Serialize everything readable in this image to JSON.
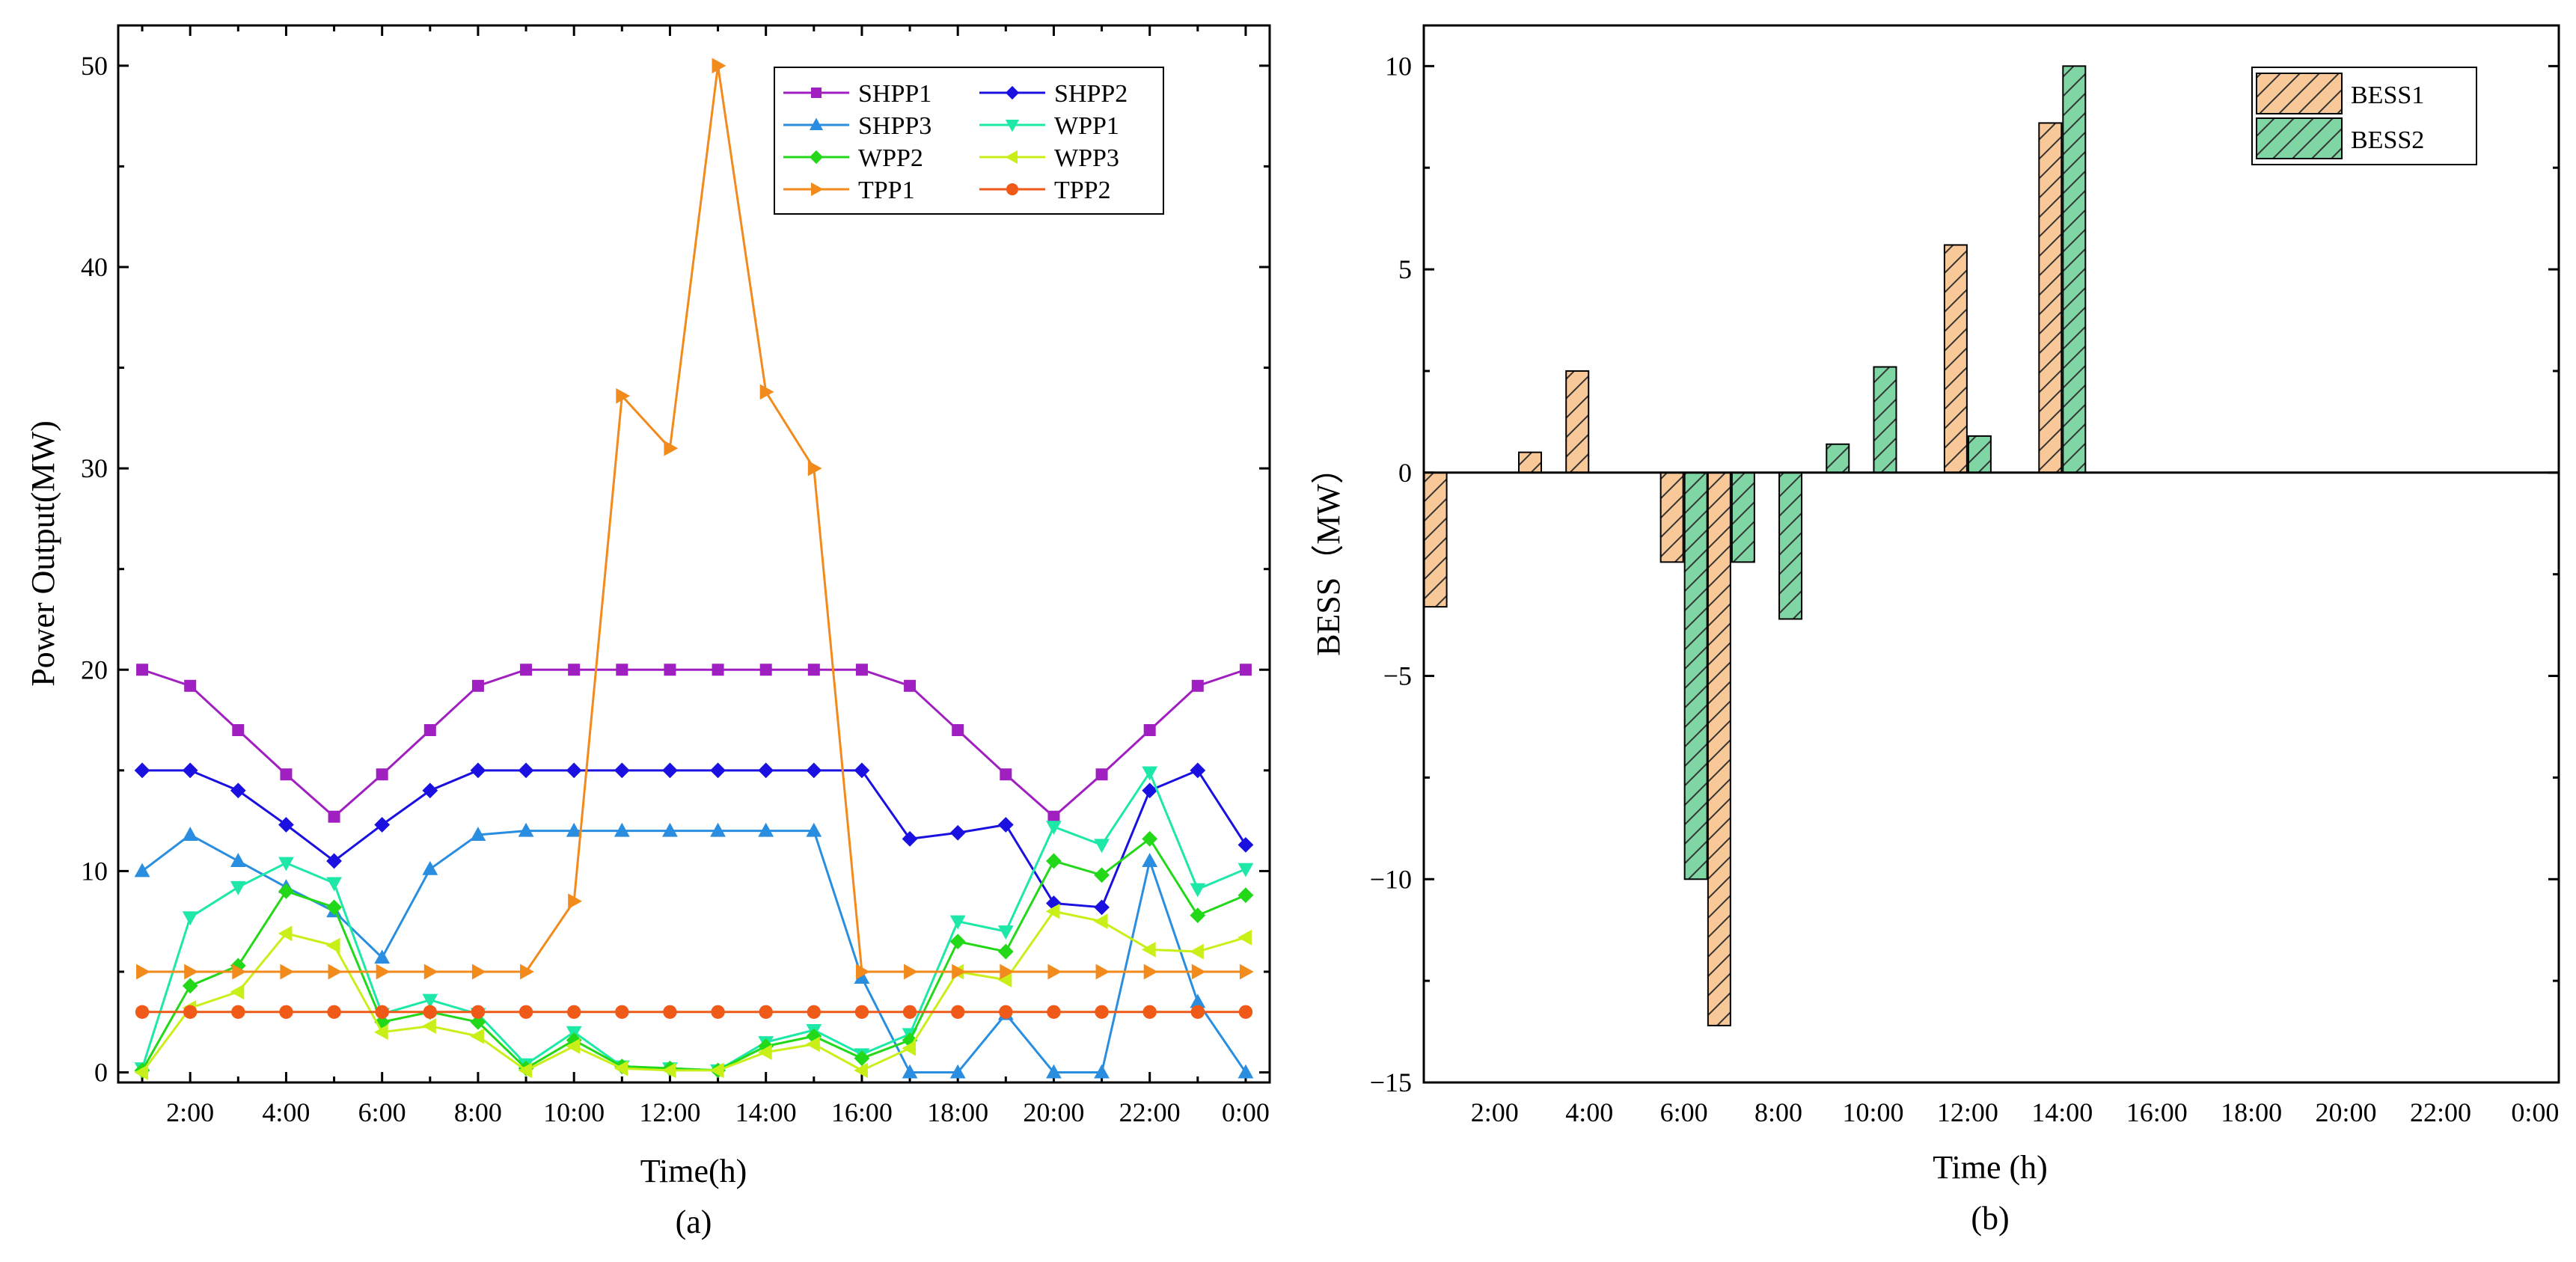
{
  "chart_data": [
    {
      "type": "line",
      "panel_label": "(a)",
      "title": "",
      "xlabel": "Time(h)",
      "ylabel": "Power Output(MW)",
      "x": [
        1,
        2,
        3,
        4,
        5,
        6,
        7,
        8,
        9,
        10,
        11,
        12,
        13,
        14,
        15,
        16,
        17,
        18,
        19,
        20,
        21,
        22,
        23,
        24
      ],
      "x_tick_labels": [
        "2:00",
        "4:00",
        "6:00",
        "8:00",
        "10:00",
        "12:00",
        "14:00",
        "16:00",
        "18:00",
        "20:00",
        "22:00",
        "0:00"
      ],
      "y_ticks": [
        0,
        10,
        20,
        30,
        40,
        50
      ],
      "xlim": [
        0.5,
        24.5
      ],
      "ylim": [
        -0.5,
        52
      ],
      "legend_position": "top-right",
      "series": [
        {
          "name": "SHPP1",
          "color": "#a01fc0",
          "marker": "square",
          "values": [
            20,
            19.2,
            17,
            14.8,
            12.7,
            14.8,
            17,
            19.2,
            20,
            20,
            20,
            20,
            20,
            20,
            20,
            20,
            19.2,
            17,
            14.8,
            12.7,
            14.8,
            17,
            19.2,
            20
          ]
        },
        {
          "name": "SHPP2",
          "color": "#1a10e0",
          "marker": "diamond",
          "values": [
            15,
            15,
            14,
            12.3,
            10.5,
            12.3,
            14,
            15,
            15,
            15,
            15,
            15,
            15,
            15,
            15,
            15,
            11.6,
            11.9,
            12.3,
            8.4,
            8.2,
            14,
            15,
            11.3
          ]
        },
        {
          "name": "SHPP3",
          "color": "#2a8ee0",
          "marker": "triangle-up",
          "values": [
            10,
            11.8,
            10.5,
            9.2,
            8,
            5.7,
            10.1,
            11.8,
            12,
            12,
            12,
            12,
            12,
            12,
            12,
            4.7,
            0,
            0,
            2.9,
            0,
            0,
            10.5,
            3.5,
            0
          ]
        },
        {
          "name": "WPP1",
          "color": "#1ee8a8",
          "marker": "triangle-down",
          "values": [
            0.2,
            7.7,
            9.2,
            10.4,
            9.4,
            2.9,
            3.6,
            2.9,
            0.4,
            2,
            0.3,
            0.2,
            0.1,
            1.5,
            2.1,
            0.9,
            1.9,
            7.5,
            7,
            12.2,
            11.3,
            14.9,
            9.1,
            10.1
          ]
        },
        {
          "name": "WPP2",
          "color": "#22d818",
          "marker": "diamond",
          "values": [
            0.1,
            4.3,
            5.3,
            9,
            8.2,
            2.5,
            3,
            2.5,
            0.2,
            1.6,
            0.3,
            0.2,
            0.1,
            1.3,
            1.8,
            0.7,
            1.6,
            6.5,
            6,
            10.5,
            9.8,
            11.6,
            7.8,
            8.8
          ]
        },
        {
          "name": "WPP3",
          "color": "#c8f018",
          "marker": "triangle-left",
          "values": [
            0,
            3.2,
            4,
            6.9,
            6.3,
            2,
            2.3,
            1.8,
            0.1,
            1.3,
            0.2,
            0.1,
            0.1,
            1,
            1.4,
            0.1,
            1.2,
            5,
            4.6,
            8,
            7.5,
            6.1,
            6,
            6.7
          ]
        },
        {
          "name": "TPP1",
          "color": "#f28a1c",
          "marker": "triangle-right",
          "values": [
            5,
            5,
            5,
            5,
            5,
            5,
            5,
            5,
            5,
            8.5,
            33.6,
            31,
            50,
            33.8,
            30,
            5,
            5,
            5,
            5,
            5,
            5,
            5,
            5,
            5
          ]
        },
        {
          "name": "TPP2",
          "color": "#f05a18",
          "marker": "circle",
          "values": [
            3,
            3,
            3,
            3,
            3,
            3,
            3,
            3,
            3,
            3,
            3,
            3,
            3,
            3,
            3,
            3,
            3,
            3,
            3,
            3,
            3,
            3,
            3,
            3
          ]
        }
      ]
    },
    {
      "type": "bar",
      "panel_label": "(b)",
      "title": "",
      "xlabel": "Time (h)",
      "ylabel": "BESS（MW）",
      "categories": [
        1,
        2,
        3,
        4,
        5,
        6,
        7,
        8,
        9,
        10,
        11,
        12,
        13,
        14,
        15,
        16,
        17,
        18,
        19,
        20,
        21,
        22,
        23,
        24
      ],
      "x_tick_labels": [
        "2:00",
        "4:00",
        "6:00",
        "8:00",
        "10:00",
        "12:00",
        "14:00",
        "16:00",
        "18:00",
        "20:00",
        "22:00",
        "0:00"
      ],
      "y_ticks": [
        -15,
        -10,
        -5,
        0,
        5,
        10
      ],
      "ylim": [
        -15,
        11
      ],
      "legend_position": "top-right",
      "series": [
        {
          "name": "BESS1",
          "color": "#f8c898",
          "hatch": "diagonal",
          "values": [
            -3.3,
            0,
            0.5,
            2.5,
            0,
            -2.2,
            -13.6,
            0,
            0,
            0,
            0,
            5.6,
            0,
            8.6,
            0,
            0,
            0,
            0,
            0,
            0,
            0,
            0,
            0,
            0
          ]
        },
        {
          "name": "BESS2",
          "color": "#7fd6a4",
          "hatch": "diagonal",
          "values": [
            0,
            0,
            0,
            0,
            0,
            -10,
            -2.2,
            -3.6,
            0.7,
            2.6,
            0,
            0.9,
            0,
            10,
            0,
            0,
            0,
            0,
            0,
            0,
            0,
            0,
            0,
            0
          ]
        }
      ]
    }
  ]
}
